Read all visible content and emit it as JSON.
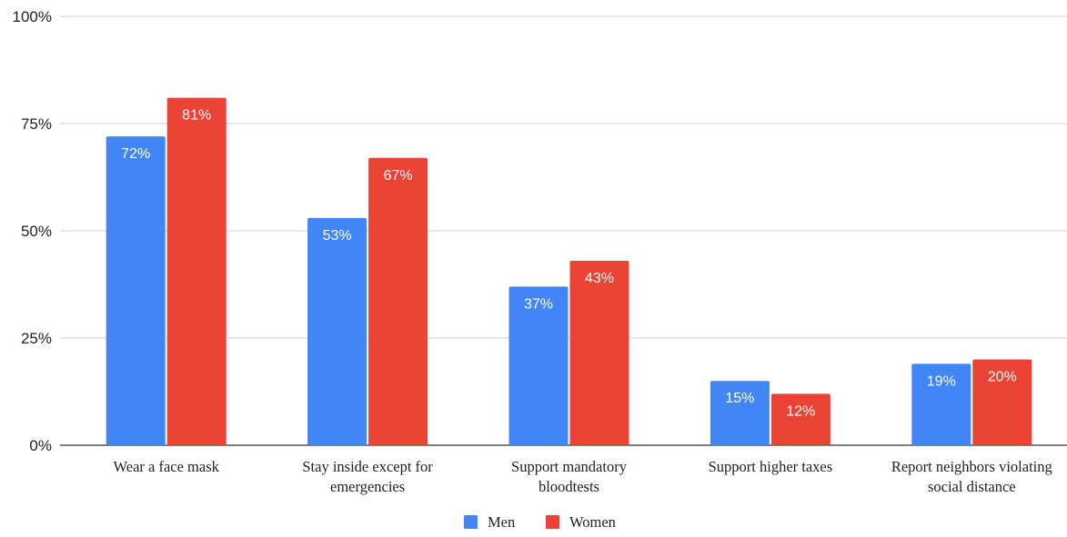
{
  "chart_data": {
    "type": "bar",
    "categories": [
      [
        "Wear a face mask"
      ],
      [
        "Stay inside except for",
        "emergencies"
      ],
      [
        "Support mandatory",
        "bloodtests"
      ],
      [
        "Support higher taxes"
      ],
      [
        "Report neighbors violating",
        "social distance"
      ]
    ],
    "series": [
      {
        "name": "Men",
        "color": "#4285f4",
        "values": [
          72,
          53,
          37,
          15,
          19
        ],
        "labels": [
          "72%",
          "53%",
          "37%",
          "15%",
          "19%"
        ]
      },
      {
        "name": "Women",
        "color": "#ea4335",
        "values": [
          81,
          67,
          43,
          12,
          20
        ],
        "labels": [
          "81%",
          "67%",
          "43%",
          "12%",
          "20%"
        ]
      }
    ],
    "y_ticks": [
      {
        "value": 0,
        "label": "0%"
      },
      {
        "value": 25,
        "label": "25%"
      },
      {
        "value": 50,
        "label": "50%"
      },
      {
        "value": 75,
        "label": "75%"
      },
      {
        "value": 100,
        "label": "100%"
      }
    ],
    "ylim": [
      0,
      100
    ],
    "grid": true,
    "legend": "bottom"
  }
}
